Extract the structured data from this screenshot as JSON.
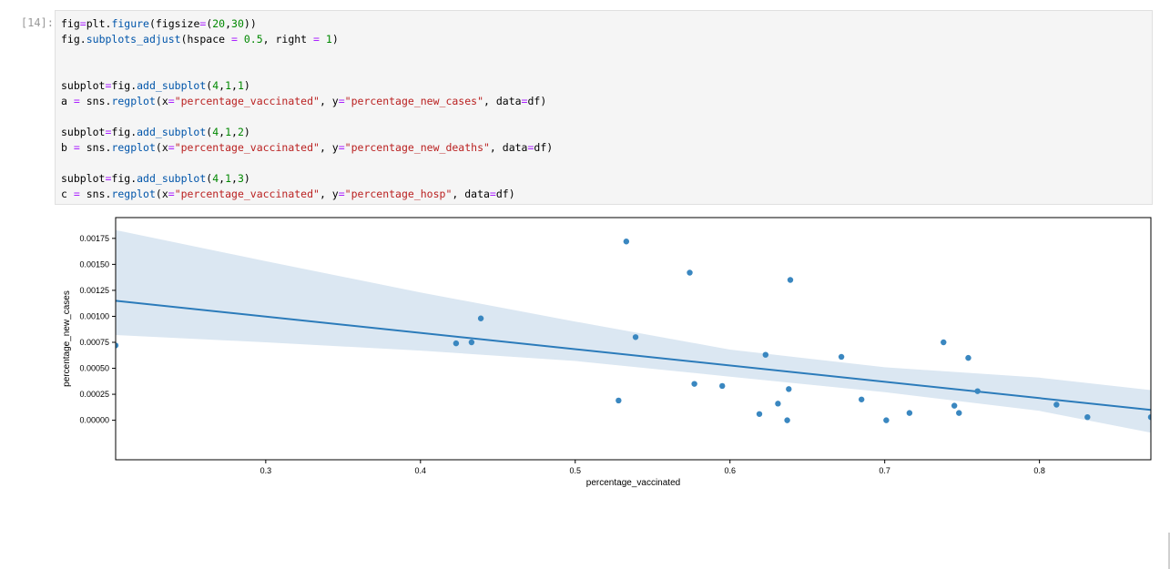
{
  "cell": {
    "prompt": "[14]:",
    "code_lines": [
      [
        {
          "t": "fig"
        },
        {
          "t": "=",
          "c": "op"
        },
        {
          "t": "plt"
        },
        {
          "t": "."
        },
        {
          "t": "figure",
          "c": "attr"
        },
        {
          "t": "(figsize"
        },
        {
          "t": "=",
          "c": "op"
        },
        {
          "t": "("
        },
        {
          "t": "20",
          "c": "num"
        },
        {
          "t": ","
        },
        {
          "t": "30",
          "c": "num"
        },
        {
          "t": "))"
        }
      ],
      [
        {
          "t": "fig"
        },
        {
          "t": "."
        },
        {
          "t": "subplots_adjust",
          "c": "attr"
        },
        {
          "t": "(hspace "
        },
        {
          "t": "=",
          "c": "op"
        },
        {
          "t": " "
        },
        {
          "t": "0.5",
          "c": "num"
        },
        {
          "t": ", right "
        },
        {
          "t": "=",
          "c": "op"
        },
        {
          "t": " "
        },
        {
          "t": "1",
          "c": "num"
        },
        {
          "t": ")"
        }
      ],
      [],
      [],
      [
        {
          "t": "subplot"
        },
        {
          "t": "=",
          "c": "op"
        },
        {
          "t": "fig"
        },
        {
          "t": "."
        },
        {
          "t": "add_subplot",
          "c": "attr"
        },
        {
          "t": "("
        },
        {
          "t": "4",
          "c": "num"
        },
        {
          "t": ","
        },
        {
          "t": "1",
          "c": "num"
        },
        {
          "t": ","
        },
        {
          "t": "1",
          "c": "num"
        },
        {
          "t": ")"
        }
      ],
      [
        {
          "t": "a "
        },
        {
          "t": "=",
          "c": "op"
        },
        {
          "t": " sns"
        },
        {
          "t": "."
        },
        {
          "t": "regplot",
          "c": "attr"
        },
        {
          "t": "(x"
        },
        {
          "t": "=",
          "c": "op"
        },
        {
          "t": "\"percentage_vaccinated\"",
          "c": "str"
        },
        {
          "t": ", y"
        },
        {
          "t": "=",
          "c": "op"
        },
        {
          "t": "\"percentage_new_cases\"",
          "c": "str"
        },
        {
          "t": ", data"
        },
        {
          "t": "=",
          "c": "op"
        },
        {
          "t": "df)"
        }
      ],
      [],
      [
        {
          "t": "subplot"
        },
        {
          "t": "=",
          "c": "op"
        },
        {
          "t": "fig"
        },
        {
          "t": "."
        },
        {
          "t": "add_subplot",
          "c": "attr"
        },
        {
          "t": "("
        },
        {
          "t": "4",
          "c": "num"
        },
        {
          "t": ","
        },
        {
          "t": "1",
          "c": "num"
        },
        {
          "t": ","
        },
        {
          "t": "2",
          "c": "num"
        },
        {
          "t": ")"
        }
      ],
      [
        {
          "t": "b "
        },
        {
          "t": "=",
          "c": "op"
        },
        {
          "t": " sns"
        },
        {
          "t": "."
        },
        {
          "t": "regplot",
          "c": "attr"
        },
        {
          "t": "(x"
        },
        {
          "t": "=",
          "c": "op"
        },
        {
          "t": "\"percentage_vaccinated\"",
          "c": "str"
        },
        {
          "t": ", y"
        },
        {
          "t": "=",
          "c": "op"
        },
        {
          "t": "\"percentage_new_deaths\"",
          "c": "str"
        },
        {
          "t": ", data"
        },
        {
          "t": "=",
          "c": "op"
        },
        {
          "t": "df)"
        }
      ],
      [],
      [
        {
          "t": "subplot"
        },
        {
          "t": "=",
          "c": "op"
        },
        {
          "t": "fig"
        },
        {
          "t": "."
        },
        {
          "t": "add_subplot",
          "c": "attr"
        },
        {
          "t": "("
        },
        {
          "t": "4",
          "c": "num"
        },
        {
          "t": ","
        },
        {
          "t": "1",
          "c": "num"
        },
        {
          "t": ","
        },
        {
          "t": "3",
          "c": "num"
        },
        {
          "t": ")"
        }
      ],
      [
        {
          "t": "c "
        },
        {
          "t": "=",
          "c": "op"
        },
        {
          "t": " sns"
        },
        {
          "t": "."
        },
        {
          "t": "regplot",
          "c": "attr"
        },
        {
          "t": "(x"
        },
        {
          "t": "=",
          "c": "op"
        },
        {
          "t": "\"percentage_vaccinated\"",
          "c": "str"
        },
        {
          "t": ", y"
        },
        {
          "t": "=",
          "c": "op"
        },
        {
          "t": "\"percentage_hosp\"",
          "c": "str"
        },
        {
          "t": ", data"
        },
        {
          "t": "=",
          "c": "op"
        },
        {
          "t": "df)"
        }
      ]
    ]
  },
  "colors": {
    "point": "#3a87c0",
    "line": "#2b7bba",
    "band": "#dbe7f2",
    "axis": "#000000",
    "op": "#aa22ff",
    "num": "#008800",
    "str": "#ba2121",
    "attr": "#0055aa"
  },
  "chart_data": {
    "type": "scatter",
    "xlabel": "percentage_vaccinated",
    "ylabel": "percentage_new_cases",
    "xlim": [
      0.203,
      0.872
    ],
    "ylim": [
      -0.00038,
      0.00195
    ],
    "xticks": [
      0.3,
      0.4,
      0.5,
      0.6,
      0.7,
      0.8
    ],
    "xtick_labels": [
      "0.3",
      "0.4",
      "0.5",
      "0.6",
      "0.7",
      "0.8"
    ],
    "yticks": [
      0.0,
      0.00025,
      0.0005,
      0.00075,
      0.001,
      0.00125,
      0.0015,
      0.00175
    ],
    "ytick_labels": [
      "0.00000",
      "0.00025",
      "0.00050",
      "0.00075",
      "0.00100",
      "0.00125",
      "0.00150",
      "0.00175"
    ],
    "points": [
      {
        "x": 0.203,
        "y": 0.00072
      },
      {
        "x": 0.423,
        "y": 0.00074
      },
      {
        "x": 0.433,
        "y": 0.00075
      },
      {
        "x": 0.439,
        "y": 0.00098
      },
      {
        "x": 0.528,
        "y": 0.00019
      },
      {
        "x": 0.533,
        "y": 0.00172
      },
      {
        "x": 0.539,
        "y": 0.0008
      },
      {
        "x": 0.574,
        "y": 0.00142
      },
      {
        "x": 0.577,
        "y": 0.00035
      },
      {
        "x": 0.595,
        "y": 0.00033
      },
      {
        "x": 0.619,
        "y": 6e-05
      },
      {
        "x": 0.623,
        "y": 0.00063
      },
      {
        "x": 0.631,
        "y": 0.00016
      },
      {
        "x": 0.637,
        "y": 0.0
      },
      {
        "x": 0.638,
        "y": 0.0003
      },
      {
        "x": 0.639,
        "y": 0.00135
      },
      {
        "x": 0.672,
        "y": 0.00061
      },
      {
        "x": 0.685,
        "y": 0.0002
      },
      {
        "x": 0.701,
        "y": 0.0
      },
      {
        "x": 0.716,
        "y": 7e-05
      },
      {
        "x": 0.738,
        "y": 0.00075
      },
      {
        "x": 0.745,
        "y": 0.00014
      },
      {
        "x": 0.748,
        "y": 7e-05
      },
      {
        "x": 0.754,
        "y": 0.0006
      },
      {
        "x": 0.76,
        "y": 0.00028
      },
      {
        "x": 0.811,
        "y": 0.00015
      },
      {
        "x": 0.831,
        "y": 3e-05
      },
      {
        "x": 0.872,
        "y": 3e-05
      }
    ],
    "regression": {
      "x": [
        0.203,
        0.872
      ],
      "y": [
        0.00115,
        0.0001
      ]
    },
    "ci_band": {
      "x": [
        0.203,
        0.3,
        0.4,
        0.5,
        0.6,
        0.7,
        0.8,
        0.872
      ],
      "upper": [
        0.00183,
        0.00153,
        0.00123,
        0.00095,
        0.00068,
        0.00051,
        0.00041,
        0.00029
      ],
      "lower": [
        0.00082,
        0.00075,
        0.00067,
        0.00057,
        0.00042,
        0.00027,
        9e-05,
        -0.00012
      ]
    },
    "grid": false,
    "legend": "none"
  }
}
